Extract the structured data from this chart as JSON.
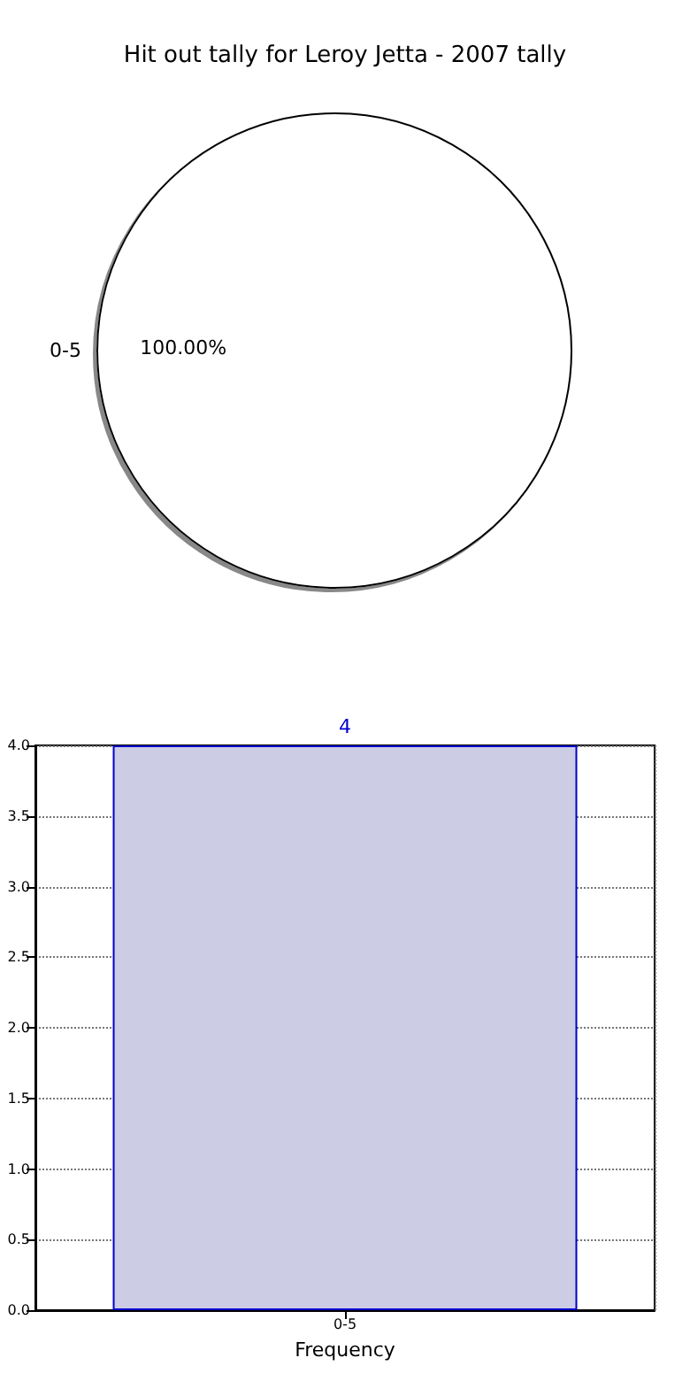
{
  "chart_data": [
    {
      "type": "pie",
      "title": "Hit out tally for Leroy Jetta - 2007 tally",
      "categories": [
        "0-5"
      ],
      "values": [
        100
      ],
      "colors": [
        "#ffffff"
      ],
      "value_labels": [
        "100.00%"
      ],
      "legend": false
    },
    {
      "type": "bar",
      "xlabel": "Frequency",
      "categories": [
        "0-5"
      ],
      "values": [
        4
      ],
      "color": "#cccce5",
      "value_labels": [
        "4"
      ],
      "ylim": [
        0,
        4
      ],
      "yticks": [
        {
          "value": 0,
          "label": "0.0"
        },
        {
          "value": 0.5,
          "label": "0.5"
        },
        {
          "value": 1,
          "label": "1.0"
        },
        {
          "value": 1.5,
          "label": "1.5"
        },
        {
          "value": 2,
          "label": "2.0"
        },
        {
          "value": 2.5,
          "label": "2.5"
        },
        {
          "value": 3,
          "label": "3.0"
        },
        {
          "value": 3.5,
          "label": "3.5"
        },
        {
          "value": 4,
          "label": "4.0"
        }
      ],
      "grid": true,
      "legend": false
    }
  ]
}
